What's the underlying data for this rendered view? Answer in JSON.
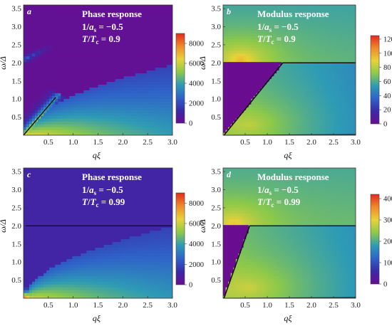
{
  "chart_data": [
    {
      "type": "heatmap",
      "panel_letter": "a",
      "title": "Phase response",
      "line1_prefix": "1/",
      "line1_var": "a",
      "line1_sub": "s",
      "line1_value": " = −0.5",
      "line2_var": "T",
      "line2_mid": "/",
      "line2_var2": "T",
      "line2_sub": "c",
      "line2_value": " = 0.9",
      "xlabel": "qξ",
      "ylabel": "ω/Δ",
      "xlim": [
        0,
        3.0
      ],
      "ylim": [
        0,
        3.6
      ],
      "xticks": [
        "0.5",
        "1.0",
        "1.5",
        "2.0",
        "2.5",
        "3.0"
      ],
      "yticks": [
        "0.5",
        "1.0",
        "1.5",
        "2.0",
        "2.5",
        "3.0",
        "3.5"
      ],
      "colorbar": {
        "range": [
          0,
          9000
        ],
        "ticks": [
          "0",
          "2000",
          "4000",
          "6000",
          "8000"
        ]
      },
      "colorscale": [
        "#6a0d91",
        "#3a2aa8",
        "#2f62c9",
        "#2e9bb5",
        "#8cc94a",
        "#e8d23a",
        "#f08a2a",
        "#e22a1e"
      ],
      "background_level": 0.02,
      "features": {
        "gap_line_omega": 2.0,
        "gap_line_style": "none",
        "continuum": {
          "x_start": 0.05,
          "x_end": 3.0,
          "y_top_at_end": 1.95,
          "peak_level": 0.45
        },
        "collective_mode": {
          "from": [
            0.0,
            0.0
          ],
          "to": [
            0.65,
            1.05
          ],
          "level": 0.75
        },
        "upper_branch": {
          "from": [
            0.0,
            2.1
          ],
          "to": [
            0.7,
            2.55
          ],
          "level": 0.3
        }
      }
    },
    {
      "type": "heatmap",
      "panel_letter": "b",
      "title": "Modulus response",
      "line1_prefix": "1/",
      "line1_var": "a",
      "line1_sub": "s",
      "line1_value": " = −0.5",
      "line2_var": "T",
      "line2_mid": "/",
      "line2_var2": "T",
      "line2_sub": "c",
      "line2_value": " = 0.9",
      "xlabel": "qξ",
      "ylabel": "ω/Δ",
      "xlim": [
        0,
        3.0
      ],
      "ylim": [
        0,
        3.6
      ],
      "xticks": [
        "0.5",
        "1.0",
        "1.5",
        "2.0",
        "2.5",
        "3.0"
      ],
      "yticks": [
        "0.5",
        "1.0",
        "1.5",
        "2.0",
        "2.5",
        "3.0",
        "3.5"
      ],
      "colorbar": {
        "range": [
          0,
          125
        ],
        "ticks": [
          "0",
          "20",
          "40",
          "60",
          "80",
          "100",
          "120"
        ]
      },
      "colorscale": [
        "#6a0d91",
        "#3a2aa8",
        "#2f62c9",
        "#2e9bb5",
        "#8cc94a",
        "#e8d23a",
        "#f08a2a",
        "#e22a1e"
      ],
      "background_level": 0.5,
      "features": {
        "gap_line_omega": 2.0,
        "gap_line_style": "dark",
        "empty_region": {
          "x_end_at_gap": 1.35,
          "level": 0.0
        },
        "bright_spot": {
          "x": 0.4,
          "y": 2.1,
          "level": 0.78
        }
      }
    },
    {
      "type": "heatmap",
      "panel_letter": "c",
      "title": "Phase response",
      "line1_prefix": "1/",
      "line1_var": "a",
      "line1_sub": "s",
      "line1_value": " = −0.5",
      "line2_var": "T",
      "line2_mid": "/",
      "line2_var2": "T",
      "line2_sub": "c",
      "line2_value": " = 0.99",
      "xlabel": "qξ",
      "ylabel": "ω/Δ",
      "xlim": [
        0,
        3.0
      ],
      "ylim": [
        0,
        3.6
      ],
      "xticks": [
        "0.5",
        "1.0",
        "1.5",
        "2.0",
        "2.5",
        "3.0"
      ],
      "yticks": [
        "0.5",
        "1.0",
        "1.5",
        "2.0",
        "2.5",
        "3.0",
        "3.5"
      ],
      "colorbar": {
        "range": [
          0,
          9000
        ],
        "ticks": [
          "0",
          "2000",
          "4000",
          "6000",
          "8000"
        ]
      },
      "colorscale": [
        "#6a0d91",
        "#3a2aa8",
        "#2f62c9",
        "#2e9bb5",
        "#8cc94a",
        "#e8d23a",
        "#f08a2a",
        "#e22a1e"
      ],
      "background_level": 0.12,
      "features": {
        "gap_line_omega": 2.0,
        "gap_line_style": "dark",
        "continuum": {
          "x_start": 0.05,
          "x_end": 3.0,
          "y_top_at_end": 2.0,
          "peak_level": 0.4
        },
        "hot_corner": {
          "x": 0.05,
          "y": 0.05,
          "level": 0.95
        }
      }
    },
    {
      "type": "heatmap",
      "panel_letter": "d",
      "title": "Modulus response",
      "line1_prefix": "1/",
      "line1_var": "a",
      "line1_sub": "s",
      "line1_value": " = −0.5",
      "line2_var": "T",
      "line2_mid": "/",
      "line2_var2": "T",
      "line2_sub": "c",
      "line2_value": " = 0.99",
      "xlabel": "qξ",
      "ylabel": "ω/Δ",
      "xlim": [
        0,
        3.0
      ],
      "ylim": [
        0,
        3.6
      ],
      "xticks": [
        "0.5",
        "1.0",
        "1.5",
        "2.0",
        "2.5",
        "3.0"
      ],
      "yticks": [
        "0.5",
        "1.0",
        "1.5",
        "2.0",
        "2.5",
        "3.0",
        "3.5"
      ],
      "colorbar": {
        "range": [
          0,
          420
        ],
        "ticks": [
          "0",
          "100",
          "200",
          "300",
          "400"
        ]
      },
      "colorscale": [
        "#6a0d91",
        "#3a2aa8",
        "#2f62c9",
        "#2e9bb5",
        "#8cc94a",
        "#e8d23a",
        "#f08a2a",
        "#e22a1e"
      ],
      "background_level": 0.52,
      "features": {
        "gap_line_omega": 2.0,
        "gap_line_style": "dark",
        "empty_region": {
          "x_end_at_gap": 0.6,
          "level": 0.0
        },
        "bright_spot": {
          "x": 0.25,
          "y": 2.1,
          "level": 0.75
        }
      }
    }
  ]
}
